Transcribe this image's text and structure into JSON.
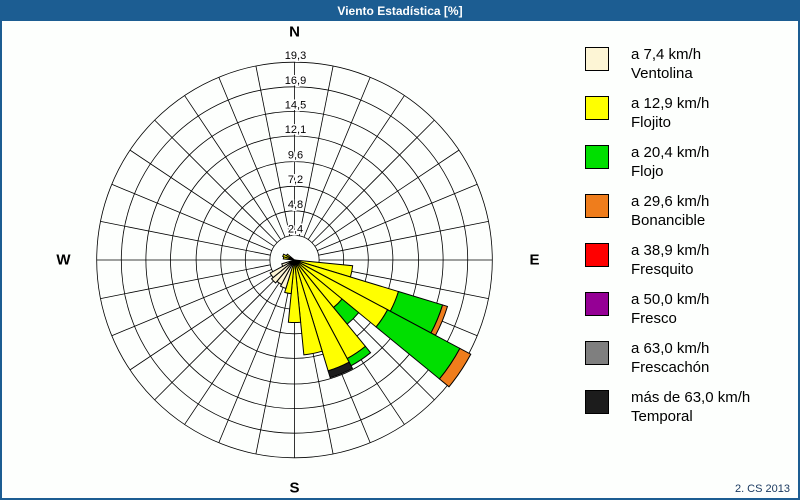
{
  "window": {
    "title": "Viento Estadística [%]",
    "footer": "2. CS 2013"
  },
  "chart_data": {
    "type": "windrose (stacked polar bar)",
    "title": "Viento Estadística [%]",
    "units": "%",
    "grid": true,
    "num_sectors": 32,
    "sector_width_deg": 11.25,
    "radial_axis_max": 19.3,
    "ring_values": [
      2.4,
      4.8,
      7.2,
      9.6,
      12.1,
      14.5,
      16.9,
      19.3
    ],
    "ring_labels": [
      "2,4",
      "4,8",
      "7,2",
      "9,6",
      "12,1",
      "14,5",
      "16,9",
      "19,3"
    ],
    "compass_labels": {
      "N": "N",
      "E": "E",
      "S": "S",
      "W": "W"
    },
    "bins": [
      {
        "name": "Ventolina",
        "speed_label": "a 7,4 km/h",
        "color": "#FDF5D5"
      },
      {
        "name": "Flojito",
        "speed_label": "a 12,9 km/h",
        "color": "#FFFF00"
      },
      {
        "name": "Flojo",
        "speed_label": "a 20,4 km/h",
        "color": "#00DF00"
      },
      {
        "name": "Bonancible",
        "speed_label": "a 29,6 km/h",
        "color": "#EF7D1C"
      },
      {
        "name": "Fresquito",
        "speed_label": "a 38,9 km/h",
        "color": "#FF0000"
      },
      {
        "name": "Fresco",
        "speed_label": "a 50,0 km/h",
        "color": "#950095"
      },
      {
        "name": "Frescachón",
        "speed_label": "a 63,0 km/h",
        "color": "#7F7F7F"
      },
      {
        "name": "Temporal",
        "speed_label": "más de 63,0 km/h",
        "color": "#1C1C1C"
      }
    ],
    "sectors": [
      {
        "dir_deg": 101.25,
        "segments": [
          {
            "bin": "Flojito",
            "value": 5.7
          }
        ]
      },
      {
        "dir_deg": 112.5,
        "segments": [
          {
            "bin": "Flojito",
            "value": 10.6
          },
          {
            "bin": "Flojo",
            "value": 4.5
          },
          {
            "bin": "Bonancible",
            "value": 0.5
          }
        ]
      },
      {
        "dir_deg": 123.75,
        "segments": [
          {
            "bin": "Flojito",
            "value": 10.3
          },
          {
            "bin": "Flojo",
            "value": 8.0
          },
          {
            "bin": "Bonancible",
            "value": 1.2
          }
        ]
      },
      {
        "dir_deg": 135.0,
        "segments": [
          {
            "bin": "Flojito",
            "value": 6.0
          },
          {
            "bin": "Flojo",
            "value": 2.1
          }
        ]
      },
      {
        "dir_deg": 146.25,
        "segments": [
          {
            "bin": "Flojito",
            "value": 10.9
          },
          {
            "bin": "Flojo",
            "value": 0.8
          }
        ]
      },
      {
        "dir_deg": 157.5,
        "segments": [
          {
            "bin": "Flojito",
            "value": 11.3
          },
          {
            "bin": "Temporal",
            "value": 0.7
          }
        ]
      },
      {
        "dir_deg": 168.75,
        "segments": [
          {
            "bin": "Flojito",
            "value": 9.3
          }
        ]
      },
      {
        "dir_deg": 180.0,
        "segments": [
          {
            "bin": "Flojito",
            "value": 6.1
          }
        ]
      },
      {
        "dir_deg": 191.25,
        "segments": [
          {
            "bin": "Flojito",
            "value": 3.3
          }
        ]
      },
      {
        "dir_deg": 202.5,
        "segments": [
          {
            "bin": "Ventolina",
            "value": 2.9
          }
        ]
      },
      {
        "dir_deg": 213.75,
        "segments": [
          {
            "bin": "Ventolina",
            "value": 2.7
          }
        ]
      },
      {
        "dir_deg": 225.0,
        "segments": [
          {
            "bin": "Ventolina",
            "value": 2.9
          }
        ]
      },
      {
        "dir_deg": 236.25,
        "segments": [
          {
            "bin": "Ventolina",
            "value": 2.7
          }
        ]
      },
      {
        "dir_deg": 247.5,
        "segments": [
          {
            "bin": "Ventolina",
            "value": 1.3
          }
        ]
      },
      {
        "dir_deg": 281.25,
        "segments": [
          {
            "bin": "Flojito",
            "value": 1.1
          }
        ]
      },
      {
        "dir_deg": 292.5,
        "segments": [
          {
            "bin": "Flojito",
            "value": 1.2
          }
        ]
      },
      {
        "dir_deg": 303.75,
        "segments": [
          {
            "bin": "Flojito",
            "value": 0.9
          }
        ]
      }
    ]
  }
}
